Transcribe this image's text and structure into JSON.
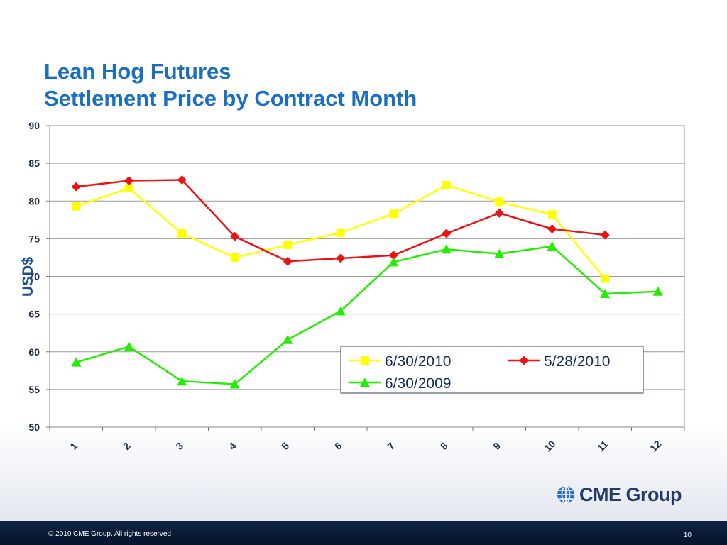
{
  "slide": {
    "title_line1": "Lean Hog Futures",
    "title_line2": "Settlement Price by Contract Month",
    "footer_copyright": "© 2010 CME Group. All rights reserved",
    "page_number": "10",
    "logo_text": "CME Group"
  },
  "chart_data": {
    "type": "line",
    "ylabel": "USD$",
    "xlabel": "",
    "ylim": [
      50,
      90
    ],
    "yticks": [
      50,
      55,
      60,
      65,
      70,
      75,
      80,
      85,
      90
    ],
    "categories": [
      "1",
      "2",
      "3",
      "4",
      "5",
      "6",
      "7",
      "8",
      "9",
      "10",
      "11",
      "12"
    ],
    "grid": true,
    "legend_position": "bottom-right",
    "series": [
      {
        "name": "6/30/2010",
        "color": "#ffff00",
        "marker": "square",
        "values": [
          79.3,
          81.7,
          75.7,
          72.5,
          74.2,
          75.8,
          78.3,
          82.1,
          79.9,
          78.2,
          69.7,
          null
        ]
      },
      {
        "name": "5/28/2010",
        "color": "#ee1111",
        "marker": "diamond",
        "values": [
          81.9,
          82.7,
          82.8,
          75.3,
          72.0,
          72.4,
          72.8,
          75.7,
          78.4,
          76.3,
          75.5,
          null
        ]
      },
      {
        "name": "6/30/2009",
        "color": "#22ee00",
        "marker": "triangle",
        "values": [
          58.6,
          60.7,
          56.1,
          55.7,
          61.6,
          65.4,
          71.9,
          73.6,
          73.0,
          74.0,
          67.7,
          68.0
        ]
      }
    ]
  }
}
